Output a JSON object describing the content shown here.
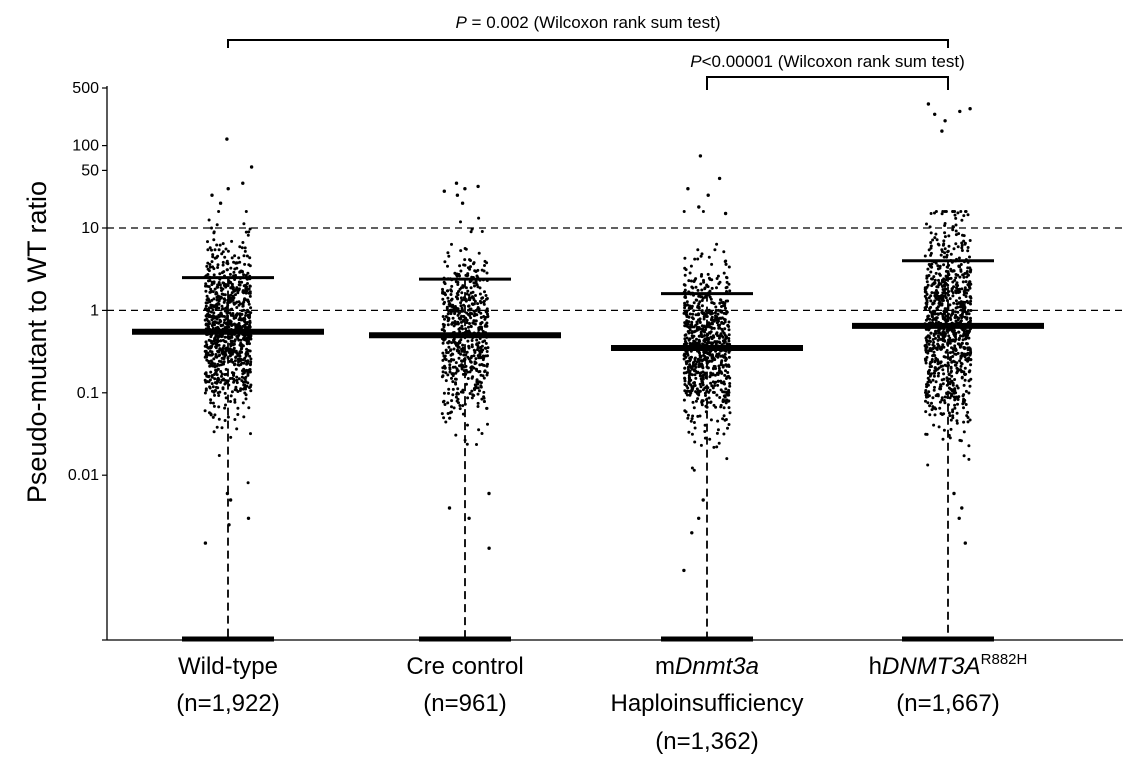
{
  "chart_data": {
    "type": "scatter",
    "subtype": "jitter-strip-with-summary-bars",
    "ylabel": "Pseudo-mutant to WT ratio",
    "yscale": "log",
    "ylim": [
      0.0001,
      500
    ],
    "y_ticks": [
      {
        "value": 500,
        "label": "500"
      },
      {
        "value": 100,
        "label": "100"
      },
      {
        "value": 50,
        "label": "50"
      },
      {
        "value": 10,
        "label": "10"
      },
      {
        "value": 1,
        "label": "1"
      },
      {
        "value": 0.1,
        "label": "0.1"
      },
      {
        "value": 0.01,
        "label": "0.01"
      }
    ],
    "reference_lines": [
      10,
      1
    ],
    "groups": [
      {
        "name": "Wild-type",
        "name_prefix": "Wild-type",
        "name_italic": "",
        "name_sup": "",
        "n_label": "(n=1,922)",
        "n": 1922,
        "median": 0.55,
        "upper_bar": 2.5,
        "points_shown": 900,
        "log_sd": 0.5,
        "outliers_high": [
          120,
          55,
          35,
          30,
          25,
          20
        ],
        "outliers_low": [
          0.006,
          0.005,
          0.003,
          0.0025,
          0.0015
        ]
      },
      {
        "name": "Cre control",
        "name_prefix": "Cre control",
        "name_italic": "",
        "name_sup": "",
        "n_label": "(n=961)",
        "n": 961,
        "median": 0.5,
        "upper_bar": 2.4,
        "points_shown": 600,
        "log_sd": 0.5,
        "outliers_high": [
          35,
          32,
          30,
          28,
          25,
          20
        ],
        "outliers_low": [
          0.006,
          0.004,
          0.003,
          0.0013
        ]
      },
      {
        "name": "mDnmt3a Haploinsufficiency",
        "name_prefix": "m",
        "name_italic": "Dnmt3a",
        "name_sup": "",
        "line2": "Haploinsufficiency",
        "n_label": "(n=1,362)",
        "n": 1362,
        "median": 0.35,
        "upper_bar": 1.6,
        "points_shown": 800,
        "log_sd": 0.48,
        "outliers_high": [
          75,
          40,
          30,
          25,
          18,
          15
        ],
        "outliers_low": [
          0.005,
          0.003,
          0.002,
          0.0007
        ]
      },
      {
        "name": "hDNMT3A R882H",
        "name_prefix": "h",
        "name_italic": "DNMT3A",
        "name_sup": "R882H",
        "n_label": "(n=1,667)",
        "n": 1667,
        "median": 0.65,
        "upper_bar": 4.0,
        "points_shown": 900,
        "log_sd": 0.58,
        "outliers_high": [
          320,
          280,
          260,
          240,
          200,
          150
        ],
        "outliers_low": [
          0.006,
          0.004,
          0.003,
          0.0015
        ]
      }
    ],
    "significance": [
      {
        "from": "Wild-type",
        "to": "hDNMT3A R882H",
        "p_symbol": "P",
        "p_value_text": " = 0.002 (Wilcoxon rank sum test)"
      },
      {
        "from": "mDnmt3a Haploinsufficiency",
        "to": "hDNMT3A R882H",
        "p_symbol": "P",
        "p_value_text": "<0.00001 (Wilcoxon rank sum test)"
      }
    ]
  }
}
